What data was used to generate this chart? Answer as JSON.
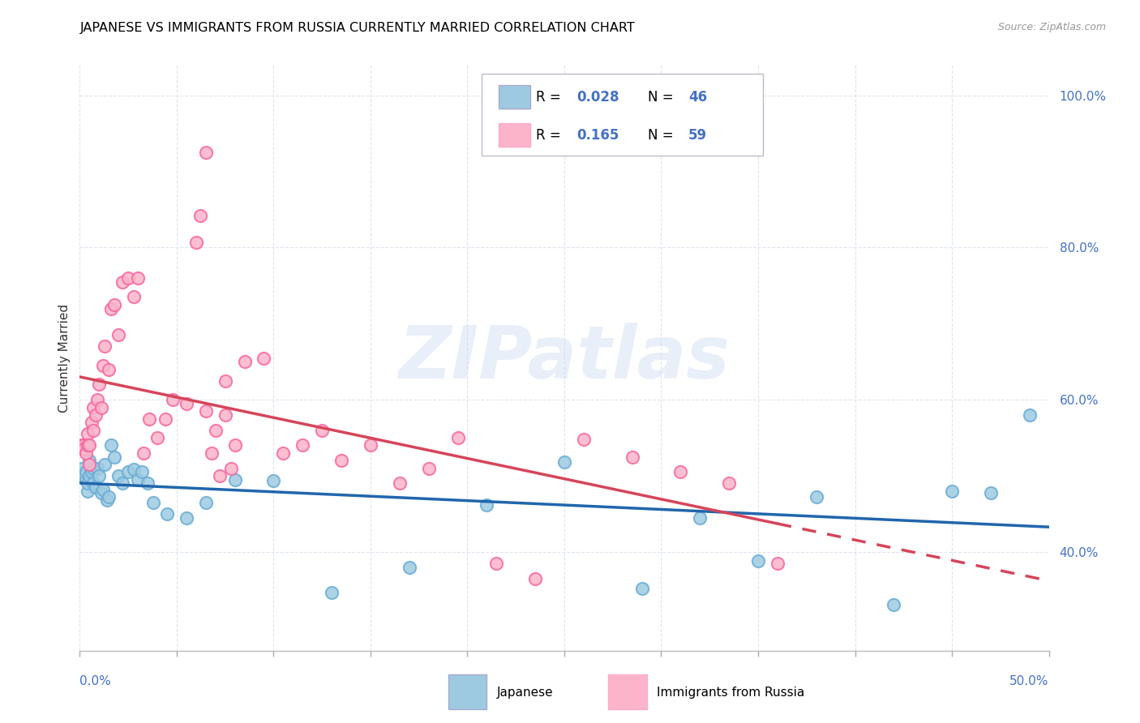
{
  "title": "JAPANESE VS IMMIGRANTS FROM RUSSIA CURRENTLY MARRIED CORRELATION CHART",
  "source": "Source: ZipAtlas.com",
  "ylabel": "Currently Married",
  "legend_japanese": "Japanese",
  "legend_russia": "Immigrants from Russia",
  "r_japanese": "0.028",
  "n_japanese": "46",
  "r_russia": "0.165",
  "n_russia": "59",
  "color_japanese": "#9ecae1",
  "color_russia": "#fbb4c9",
  "color_border_japanese": "#6baed6",
  "color_border_russia": "#f768a1",
  "color_trendline_japanese": "#2166ac",
  "color_trendline_russia": "#d6455a",
  "watermark": "ZIPatlas",
  "xlim": [
    0.0,
    0.5
  ],
  "ylim": [
    0.27,
    1.04
  ],
  "ytick_vals": [
    0.4,
    0.6,
    0.8,
    1.0
  ],
  "ytick_labels": [
    "40.0%",
    "60.0%",
    "80.0%",
    "100.0%"
  ],
  "jap_x": [
    0.001,
    0.002,
    0.003,
    0.003,
    0.004,
    0.004,
    0.005,
    0.005,
    0.006,
    0.007,
    0.007,
    0.008,
    0.009,
    0.01,
    0.011,
    0.012,
    0.013,
    0.014,
    0.015,
    0.016,
    0.018,
    0.02,
    0.022,
    0.025,
    0.028,
    0.03,
    0.032,
    0.035,
    0.038,
    0.045,
    0.055,
    0.065,
    0.08,
    0.1,
    0.13,
    0.17,
    0.21,
    0.25,
    0.29,
    0.32,
    0.35,
    0.38,
    0.42,
    0.45,
    0.47,
    0.49
  ],
  "jap_y": [
    0.51,
    0.5,
    0.495,
    0.505,
    0.48,
    0.49,
    0.52,
    0.5,
    0.505,
    0.49,
    0.51,
    0.485,
    0.51,
    0.5,
    0.478,
    0.482,
    0.515,
    0.468,
    0.472,
    0.54,
    0.525,
    0.5,
    0.49,
    0.505,
    0.508,
    0.495,
    0.505,
    0.49,
    0.465,
    0.45,
    0.445,
    0.465,
    0.495,
    0.494,
    0.347,
    0.38,
    0.462,
    0.518,
    0.352,
    0.445,
    0.388,
    0.472,
    0.33,
    0.48,
    0.478,
    0.58
  ],
  "rus_x": [
    0.001,
    0.002,
    0.002,
    0.003,
    0.004,
    0.004,
    0.005,
    0.005,
    0.006,
    0.007,
    0.007,
    0.008,
    0.009,
    0.01,
    0.011,
    0.012,
    0.013,
    0.015,
    0.016,
    0.018,
    0.02,
    0.022,
    0.025,
    0.028,
    0.03,
    0.033,
    0.036,
    0.04,
    0.044,
    0.048,
    0.055,
    0.065,
    0.075,
    0.085,
    0.095,
    0.105,
    0.115,
    0.125,
    0.135,
    0.15,
    0.165,
    0.18,
    0.195,
    0.215,
    0.235,
    0.26,
    0.285,
    0.31,
    0.335,
    0.36,
    0.06,
    0.062,
    0.065,
    0.068,
    0.07,
    0.072,
    0.075,
    0.078,
    0.08
  ],
  "rus_y": [
    0.54,
    0.54,
    0.535,
    0.53,
    0.555,
    0.54,
    0.54,
    0.515,
    0.57,
    0.56,
    0.59,
    0.58,
    0.6,
    0.62,
    0.59,
    0.645,
    0.67,
    0.64,
    0.72,
    0.725,
    0.685,
    0.755,
    0.76,
    0.735,
    0.76,
    0.53,
    0.575,
    0.55,
    0.575,
    0.6,
    0.595,
    0.585,
    0.625,
    0.65,
    0.655,
    0.53,
    0.54,
    0.56,
    0.52,
    0.54,
    0.49,
    0.51,
    0.55,
    0.385,
    0.365,
    0.548,
    0.525,
    0.505,
    0.49,
    0.385,
    0.807,
    0.842,
    0.925,
    0.53,
    0.56,
    0.5,
    0.58,
    0.51,
    0.54
  ]
}
